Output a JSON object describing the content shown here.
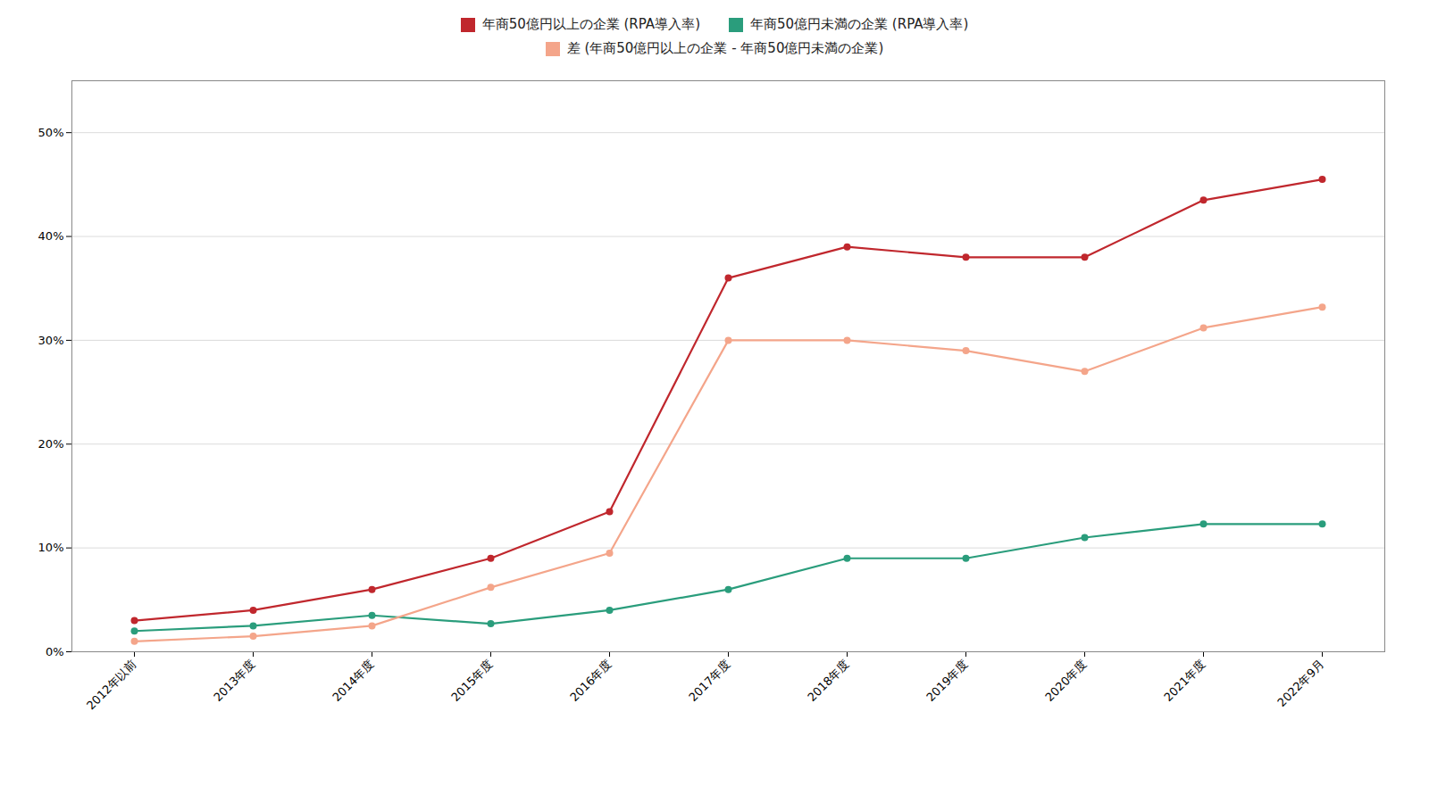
{
  "chart_data": {
    "type": "line",
    "categories": [
      "2012年以前",
      "2013年度",
      "2014年度",
      "2015年度",
      "2016年度",
      "2017年度",
      "2018年度",
      "2019年度",
      "2020年度",
      "2021年度",
      "2022年9月"
    ],
    "series": [
      {
        "name": "年商50億円以上の企業 (RPA導入率)",
        "color": "#c0272d",
        "values": [
          0.03,
          0.04,
          0.06,
          0.09,
          0.135,
          0.36,
          0.39,
          0.38,
          0.38,
          0.435,
          0.455
        ]
      },
      {
        "name": "年商50億円未満の企業 (RPA導入率)",
        "color": "#2a9d7c",
        "values": [
          0.02,
          0.025,
          0.035,
          0.027,
          0.04,
          0.06,
          0.09,
          0.09,
          0.11,
          0.123,
          0.123
        ]
      },
      {
        "name": "差 (年商50億円以上の企業 - 年商50億円未満の企業)",
        "color": "#f4a58a",
        "values": [
          0.01,
          0.015,
          0.025,
          0.062,
          0.095,
          0.3,
          0.3,
          0.29,
          0.27,
          0.312,
          0.332
        ]
      }
    ],
    "ylim": [
      0,
      0.55
    ],
    "yticks": [
      {
        "value": 0,
        "label": "0%"
      },
      {
        "value": 0.1,
        "label": "10%"
      },
      {
        "value": 0.2,
        "label": "20%"
      },
      {
        "value": 0.3,
        "label": "30%"
      },
      {
        "value": 0.4,
        "label": "40%"
      },
      {
        "value": 0.5,
        "label": "50%"
      }
    ],
    "grid": true,
    "legend": "top",
    "marker": "circle"
  }
}
